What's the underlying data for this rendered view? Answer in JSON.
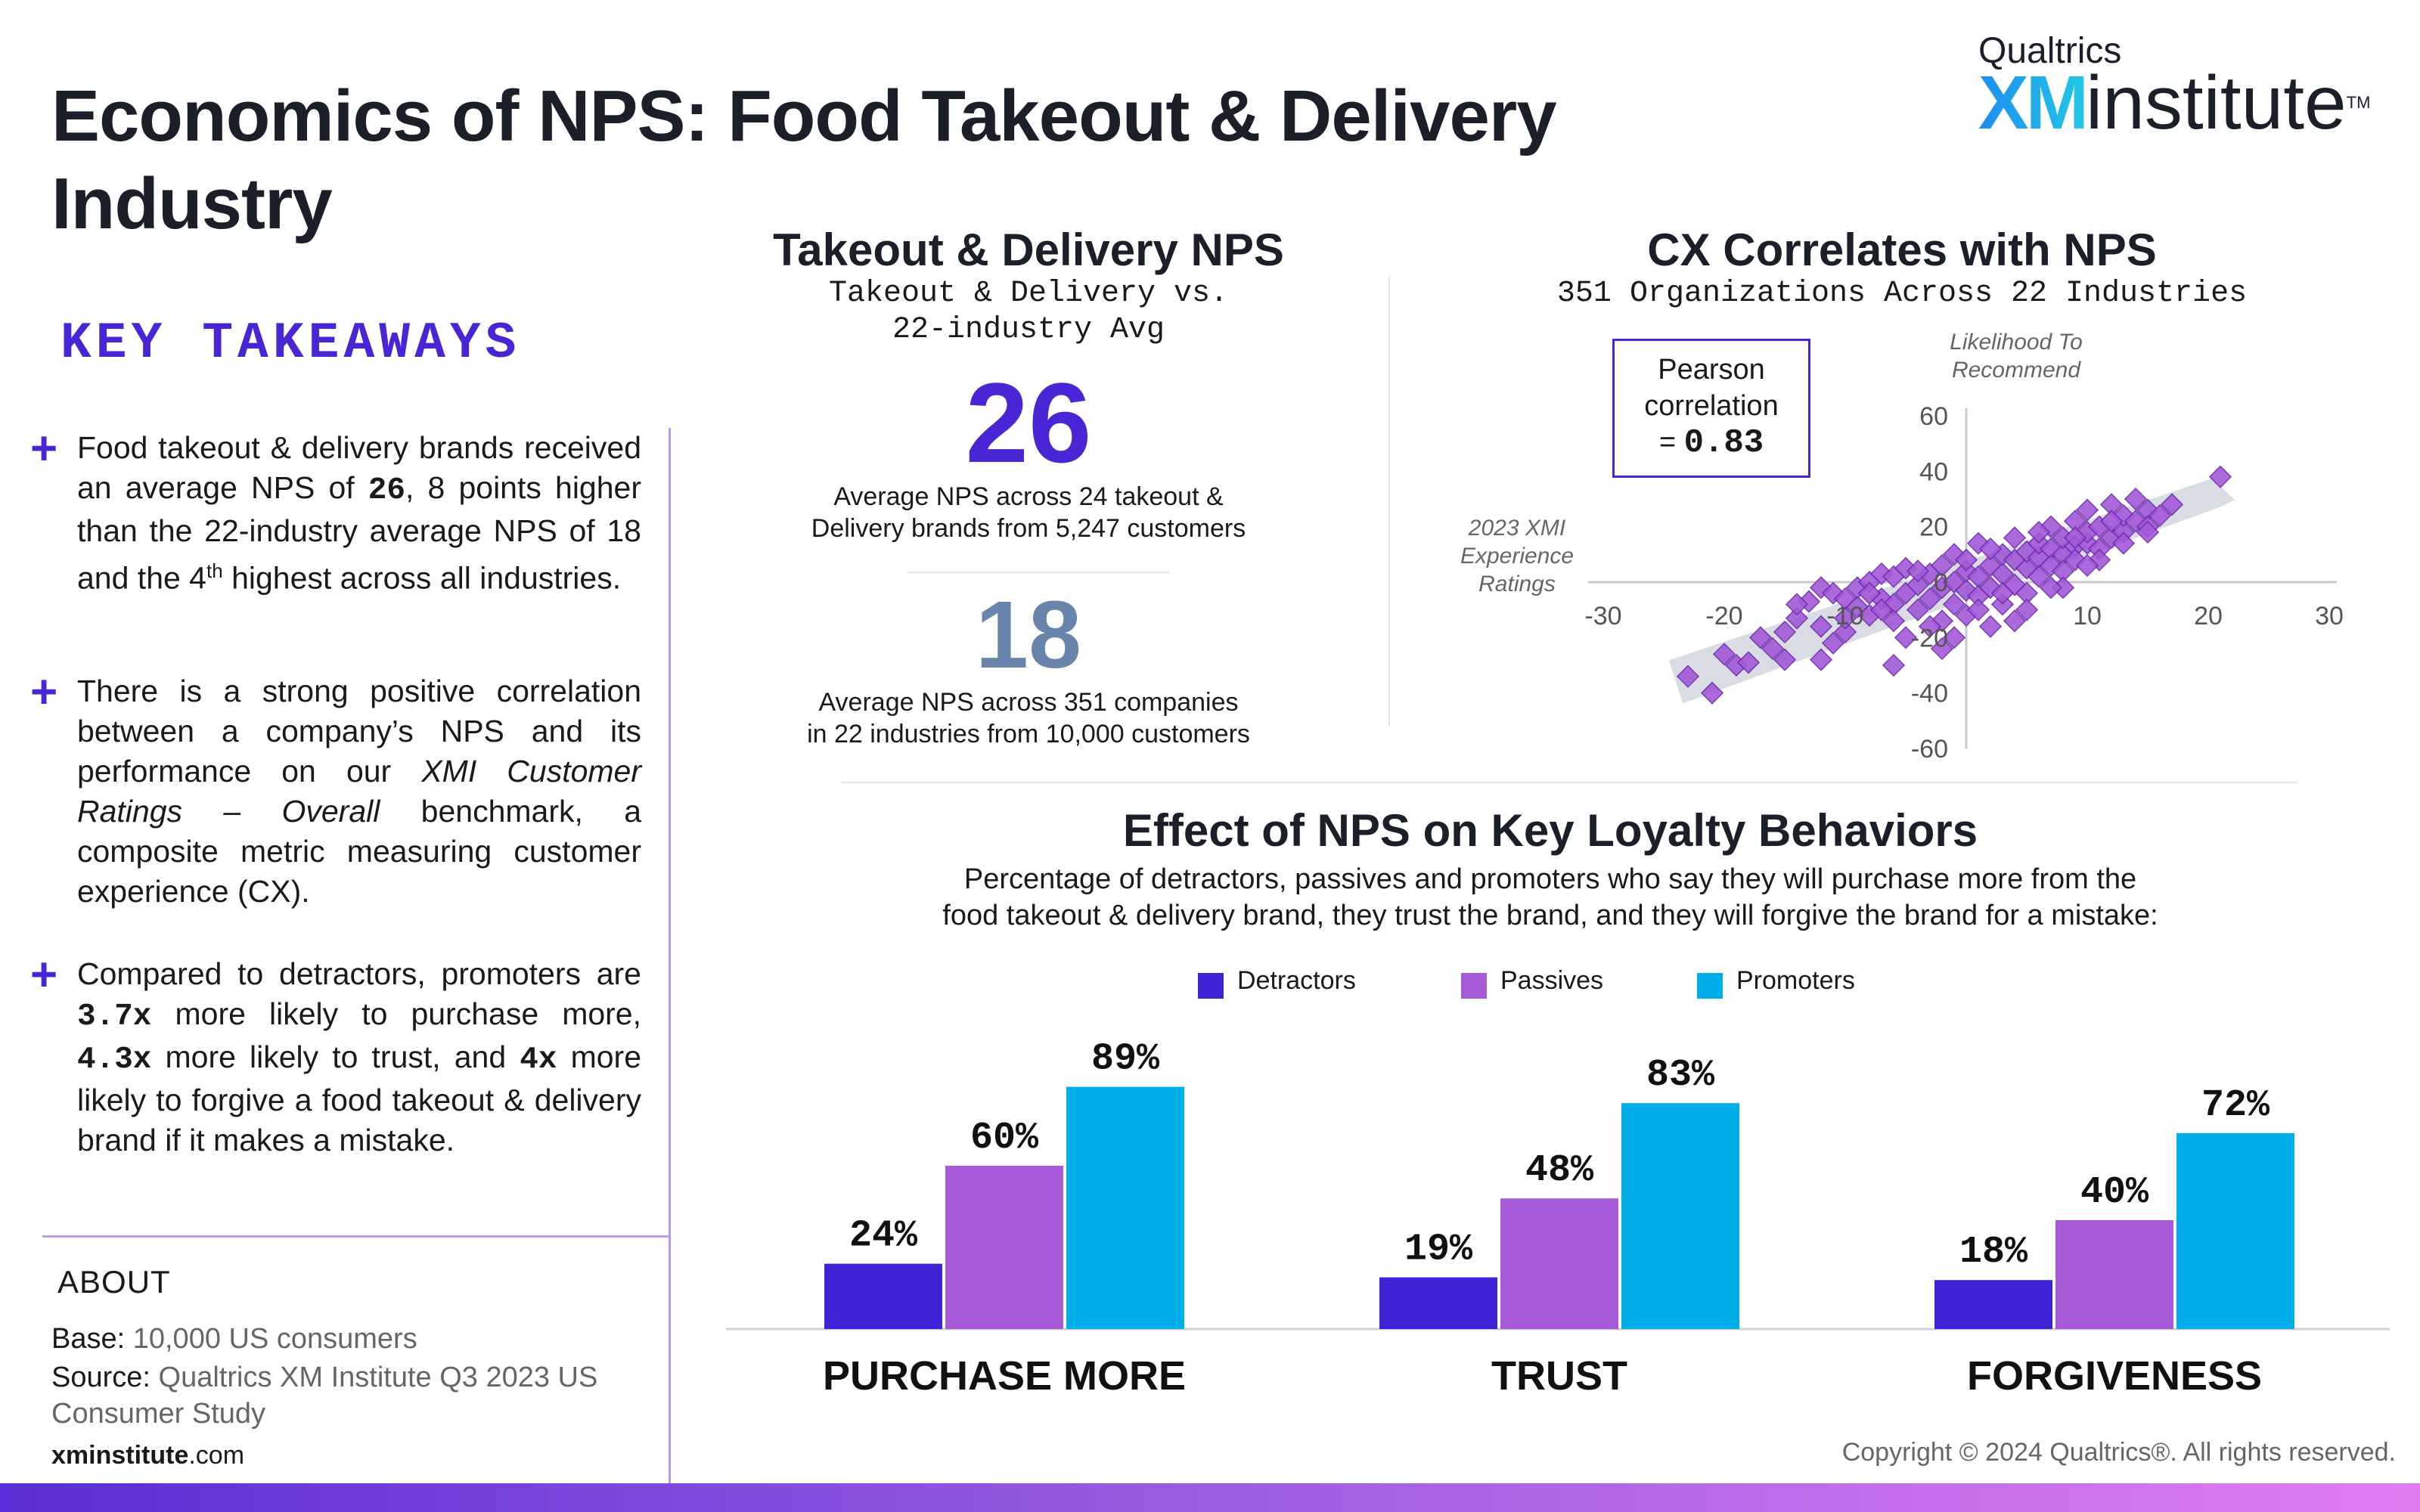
{
  "title": "Economics of NPS: Food Takeout & Delivery Industry",
  "logo": {
    "top": "Qualtrics",
    "xm": "XM",
    "institute": "institute",
    "tm": "TM"
  },
  "takeaways": {
    "heading": "KEY TAKEAWAYS",
    "plus": "+",
    "b1": {
      "t1": "Food takeout & delivery brands received an average NPS of ",
      "v1": "26",
      "t2": ", 8 points higher than the 22-industry average NPS of 18 and the 4",
      "sup": "th",
      "t3": " highest across all industries."
    },
    "b2": {
      "t1": " There is a strong positive correlation between a company’s NPS and its performance on our ",
      "em": "XMI Customer Ratings – Overall",
      "t2": " benchmark, a composite metric measuring customer experience (CX)."
    },
    "b3": {
      "t1": "Compared to detractors, promoters are ",
      "v1": "3.7x",
      "t2": " more likely to purchase more, ",
      "v2": "4.3x",
      "t3": " more likely to trust, and ",
      "v3": "4x",
      "t4": " more likely to forgive a food takeout & delivery brand if it makes a mistake."
    }
  },
  "about": {
    "heading": "ABOUT",
    "base_label": "Base:",
    "base_value": " 10,000 US consumers",
    "source_label": "Source:",
    "source_value": " Qualtrics XM Institute Q3 2023 US Consumer Study",
    "site_bold": "xminstitute",
    "site_rest": ".com"
  },
  "copyright": "Copyright © 2024 Qualtrics®. All rights reserved.",
  "nps_panel": {
    "title": "Takeout & Delivery NPS",
    "subtitle1": "Takeout & Delivery vs.",
    "subtitle2": "22-industry Avg",
    "value1": "26",
    "desc1a": "Average NPS across 24 takeout &",
    "desc1b": "Delivery brands from 5,247 customers",
    "value2": "18",
    "desc2a": "Average NPS across 351 companies",
    "desc2b": "in 22 industries from 10,000 customers"
  },
  "colors": {
    "detractors": "#3d22d6",
    "passives": "#a75ad8",
    "promoters": "#00aeea",
    "scatter": "#a259d9",
    "accent": "#4a25d6"
  },
  "chart_data": [
    {
      "type": "scatter",
      "title": "CX Correlates with NPS",
      "subtitle": "351 Organizations Across 22 Industries",
      "xlabel": "2023 XMI Experience Ratings",
      "ylabel": "Likelihood To Recommend",
      "xlim": [
        -30,
        30
      ],
      "ylim": [
        -60,
        60
      ],
      "xticks": [
        "-30",
        "-20",
        "-10",
        "10",
        "20",
        "30"
      ],
      "yticks": [
        "60",
        "40",
        "20",
        "0",
        "-20",
        "-40",
        "-60"
      ],
      "annotation": {
        "line1": "Pearson",
        "line2": "correlation",
        "line3": "= ",
        "value": "0.83"
      },
      "points": [
        [
          -23,
          -34
        ],
        [
          -21,
          -40
        ],
        [
          -20,
          -26
        ],
        [
          -19,
          -30
        ],
        [
          -18,
          -29
        ],
        [
          -16,
          -24
        ],
        [
          -15,
          -28
        ],
        [
          -14,
          -13
        ],
        [
          -13,
          -7
        ],
        [
          -12,
          -2
        ],
        [
          -12,
          -16
        ],
        [
          -11,
          -4
        ],
        [
          -10,
          -6
        ],
        [
          -10,
          -18
        ],
        [
          -9,
          -9
        ],
        [
          -9,
          -2
        ],
        [
          -8,
          0
        ],
        [
          -8,
          -12
        ],
        [
          -7,
          3
        ],
        [
          -7,
          -6
        ],
        [
          -6,
          -8
        ],
        [
          -6,
          2
        ],
        [
          -6,
          -30
        ],
        [
          -5,
          -4
        ],
        [
          -5,
          5
        ],
        [
          -5,
          -20
        ],
        [
          -4,
          -1
        ],
        [
          -4,
          -10
        ],
        [
          -3,
          3
        ],
        [
          -3,
          -6
        ],
        [
          -2,
          -2
        ],
        [
          -2,
          -14
        ],
        [
          -2,
          6
        ],
        [
          -1,
          0
        ],
        [
          -1,
          -8
        ],
        [
          -1,
          10
        ],
        [
          0,
          -3
        ],
        [
          0,
          4
        ],
        [
          0,
          -12
        ],
        [
          1,
          2
        ],
        [
          1,
          -5
        ],
        [
          1,
          14
        ],
        [
          2,
          6
        ],
        [
          2,
          -2
        ],
        [
          2,
          -16
        ],
        [
          3,
          3
        ],
        [
          3,
          10
        ],
        [
          3,
          -8
        ],
        [
          4,
          8
        ],
        [
          4,
          -1
        ],
        [
          4,
          16
        ],
        [
          5,
          5
        ],
        [
          5,
          11
        ],
        [
          5,
          -4
        ],
        [
          6,
          9
        ],
        [
          6,
          14
        ],
        [
          6,
          2
        ],
        [
          7,
          12
        ],
        [
          7,
          6
        ],
        [
          7,
          20
        ],
        [
          8,
          10
        ],
        [
          8,
          16
        ],
        [
          8,
          4
        ],
        [
          9,
          13
        ],
        [
          9,
          22
        ],
        [
          9,
          8
        ],
        [
          10,
          14
        ],
        [
          10,
          18
        ],
        [
          10,
          26
        ],
        [
          11,
          12
        ],
        [
          11,
          20
        ],
        [
          12,
          16
        ],
        [
          12,
          28
        ],
        [
          13,
          18
        ],
        [
          13,
          24
        ],
        [
          14,
          22
        ],
        [
          14,
          30
        ],
        [
          15,
          26
        ],
        [
          15,
          20
        ],
        [
          16,
          24
        ],
        [
          17,
          28
        ],
        [
          21,
          38
        ],
        [
          -14,
          -8
        ],
        [
          -10,
          -13
        ],
        [
          -4,
          4
        ],
        [
          0,
          8
        ],
        [
          -6,
          -14
        ],
        [
          3,
          -4
        ],
        [
          6,
          18
        ],
        [
          11,
          8
        ],
        [
          -3,
          -16
        ],
        [
          -8,
          -4
        ],
        [
          2,
          12
        ],
        [
          8,
          -2
        ],
        [
          12,
          22
        ],
        [
          -11,
          -22
        ],
        [
          -1,
          -20
        ],
        [
          5,
          -10
        ],
        [
          9,
          16
        ],
        [
          13,
          14
        ],
        [
          -15,
          -18
        ],
        [
          -7,
          -10
        ],
        [
          1,
          -10
        ],
        [
          7,
          -2
        ],
        [
          15,
          18
        ],
        [
          -12,
          -28
        ],
        [
          -2,
          -24
        ],
        [
          4,
          -14
        ],
        [
          10,
          6
        ],
        [
          -17,
          -20
        ]
      ],
      "band": {
        "x": [
          -24,
          21
        ],
        "y": [
          -36,
          28
        ]
      }
    },
    {
      "type": "bar",
      "title": "Effect of NPS on Key Loyalty Behaviors",
      "subtitle1": "Percentage of detractors, passives and promoters who say they will purchase more from the",
      "subtitle2": "food takeout & delivery brand, they trust the brand, and they will forgive the brand for a mistake:",
      "categories": [
        "PURCHASE MORE",
        "TRUST",
        "FORGIVENESS"
      ],
      "series": [
        {
          "name": "Detractors",
          "values": [
            24,
            19,
            18
          ],
          "labels": [
            "24%",
            "19%",
            "18%"
          ]
        },
        {
          "name": "Passives",
          "values": [
            60,
            48,
            40
          ],
          "labels": [
            "60%",
            "48%",
            "40%"
          ]
        },
        {
          "name": "Promoters",
          "values": [
            89,
            83,
            72
          ],
          "labels": [
            "89%",
            "83%",
            "72%"
          ]
        }
      ],
      "ylim": [
        0,
        100
      ],
      "legend": "top-center"
    }
  ]
}
